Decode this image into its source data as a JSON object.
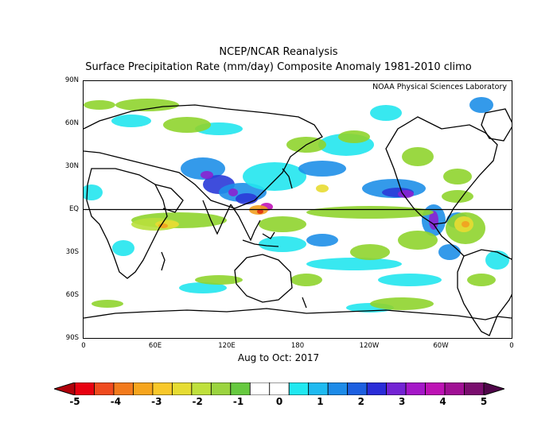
{
  "title_line1": "NCEP/NCAR Reanalysis",
  "title_line2": "Surface Precipitation Rate (mm/day) Composite Anomaly 1981-2010 climo",
  "credit": "NOAA Physical Sciences Laboratory",
  "period": "Aug to Oct: 2017",
  "lat_labels": [
    "90N",
    "60N",
    "30N",
    "EQ",
    "30S",
    "60S",
    "90S"
  ],
  "lon_labels": [
    "0",
    "60E",
    "120E",
    "180",
    "120W",
    "60W",
    "0"
  ],
  "colorbar": {
    "labels": [
      "-5",
      "-4",
      "-3",
      "-2",
      "-1",
      "0",
      "1",
      "2",
      "3",
      "4",
      "5"
    ],
    "colors": [
      "#e8000f",
      "#ef4a1e",
      "#f27a1c",
      "#f6a51d",
      "#f8c82a",
      "#e6dc32",
      "#bfe03c",
      "#9bd43f",
      "#66c93f",
      "#ffffff",
      "#ffffff",
      "#20e8f0",
      "#1ebaf0",
      "#1d8be8",
      "#1c5fe0",
      "#2a2cd8",
      "#7323d4",
      "#a517c8",
      "#bd12b4",
      "#a00f94",
      "#7a0d6e"
    ],
    "low_arrow_color": "#b0000a",
    "high_arrow_color": "#50064a"
  },
  "anomaly_colors": {
    "green": "#8fd42e",
    "lightgreen": "#b8e03c",
    "yellow": "#e8dc32",
    "orange": "#f2a020",
    "red": "#e23010",
    "cyan": "#22e6ee",
    "blue": "#1e8fe8",
    "darkblue": "#2a3ad8",
    "purple": "#8a22d0",
    "magenta": "#c014b8"
  }
}
